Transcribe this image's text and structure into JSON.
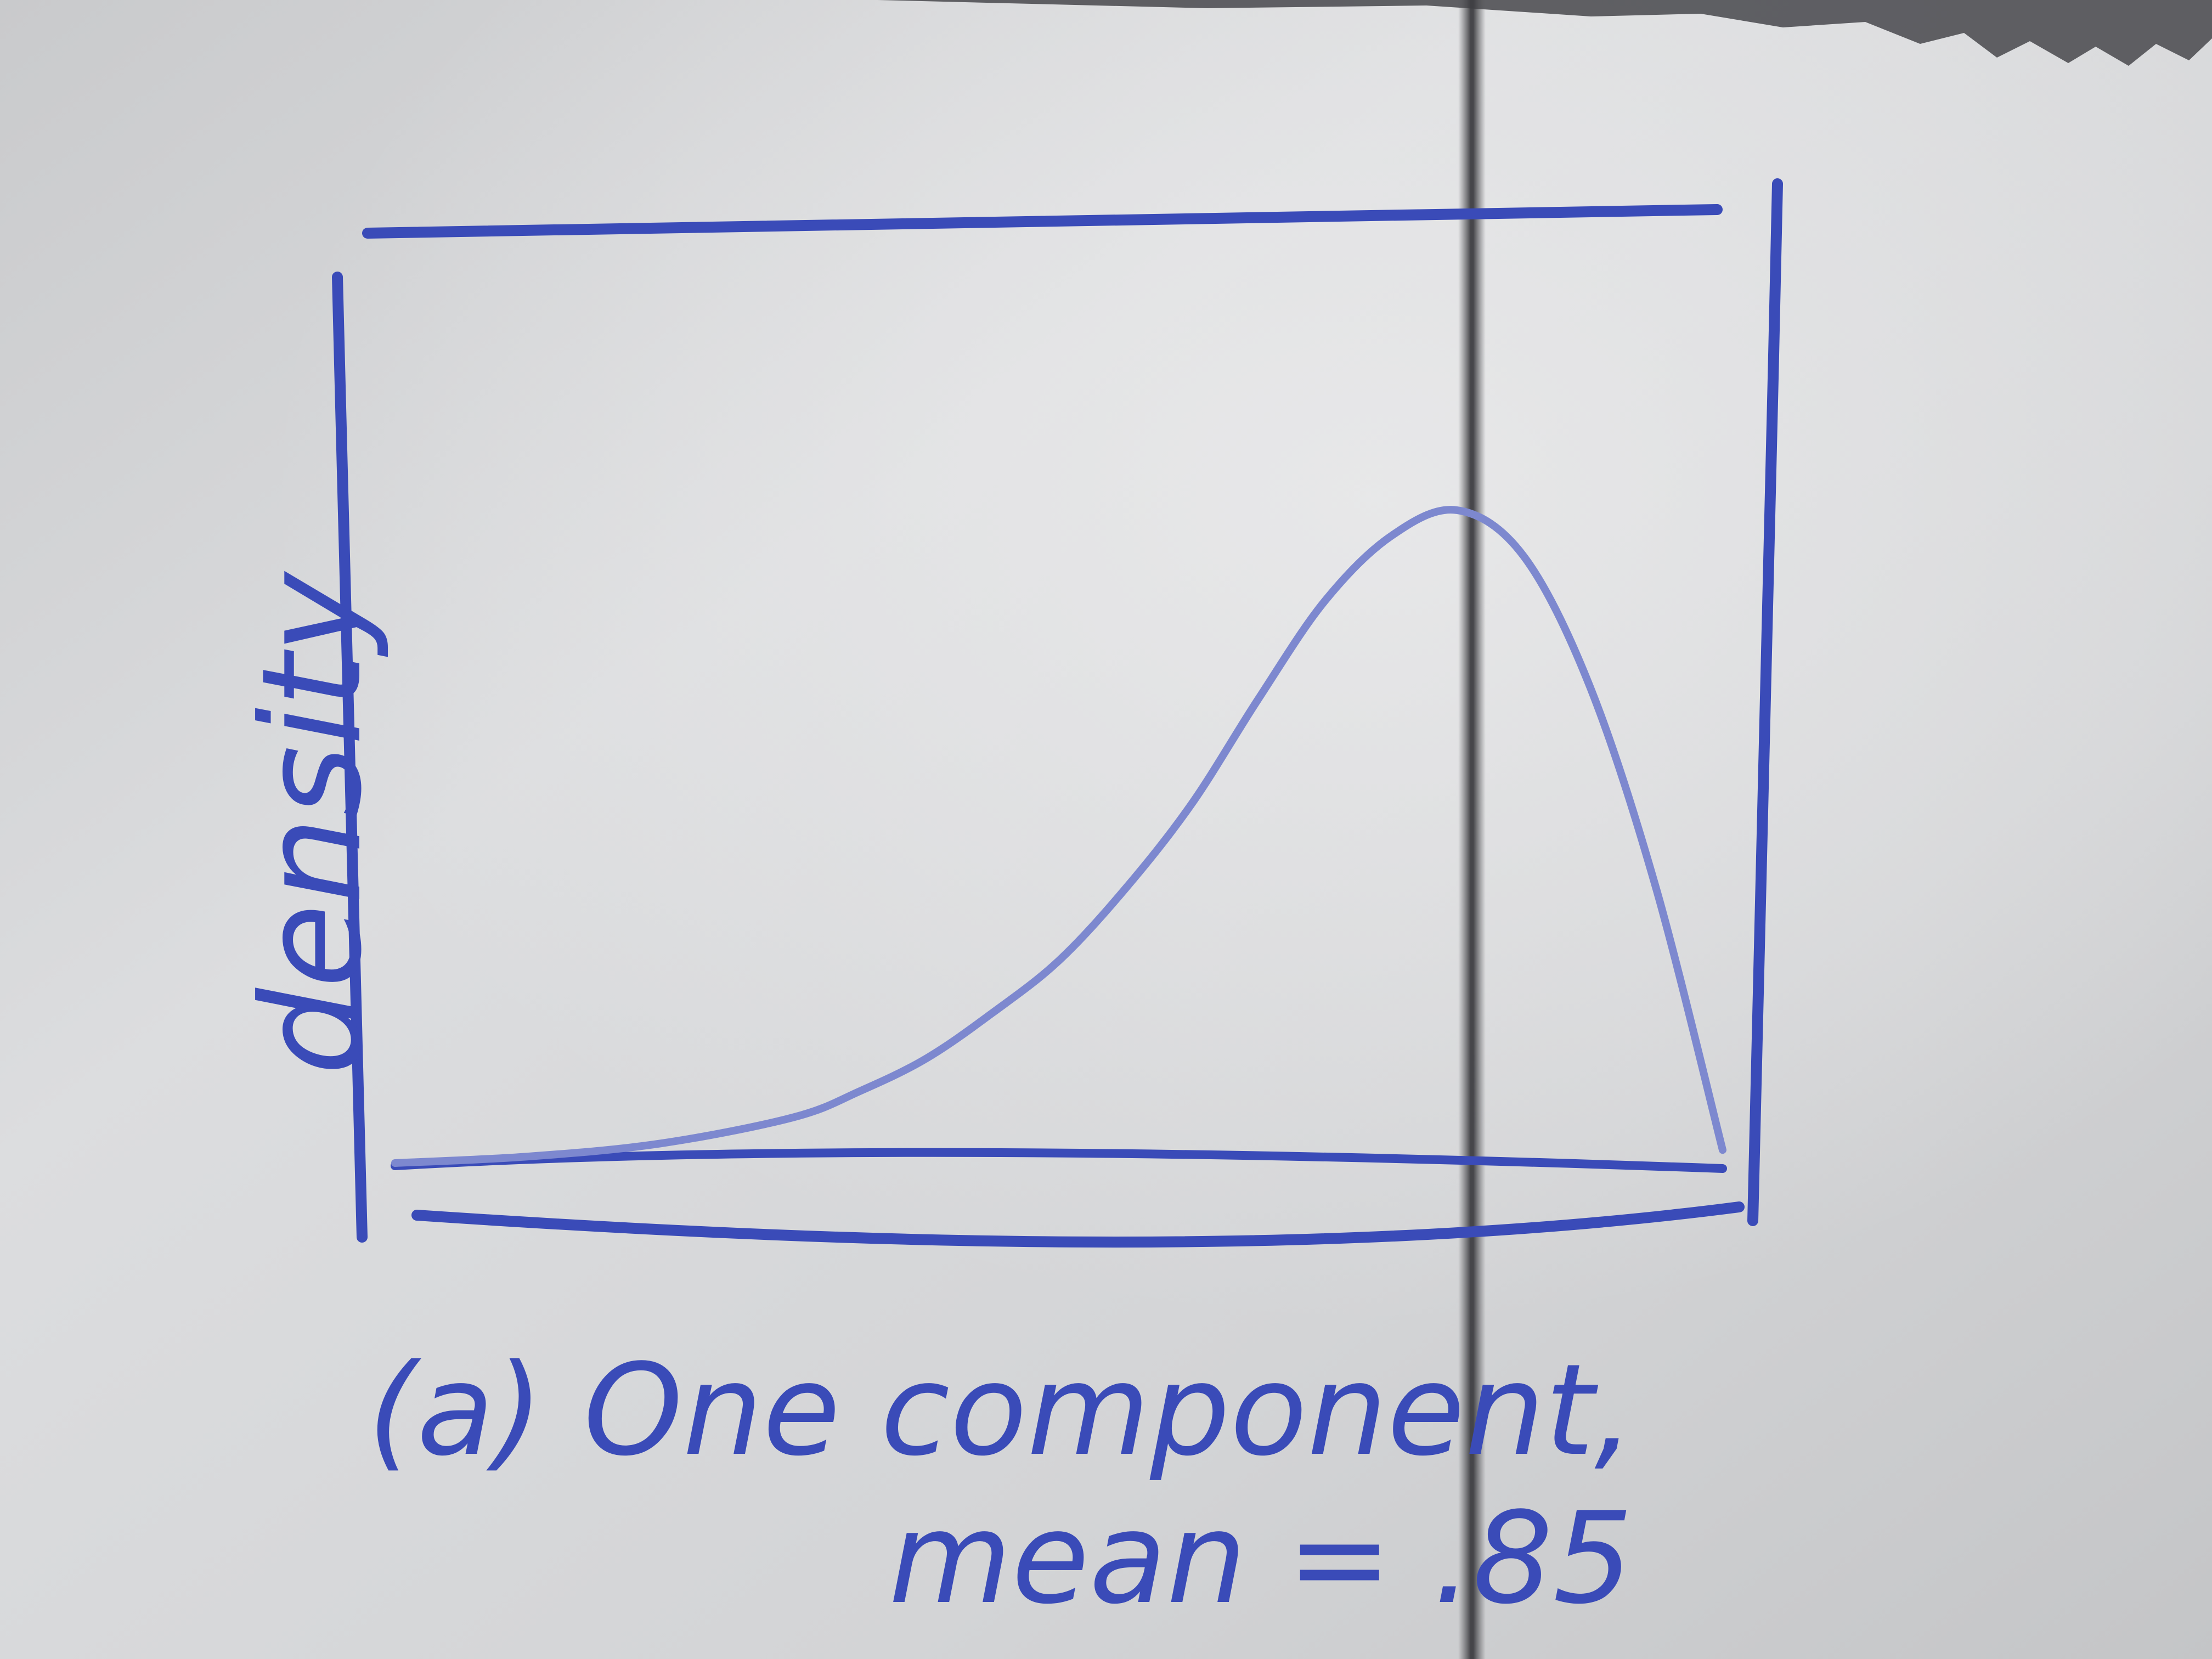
{
  "colors": {
    "ink": "#3a4bb8",
    "curve_ink": "#7d88cf",
    "paper": "#d8d9db",
    "fold": "#4a4a4e"
  },
  "chart_data": {
    "type": "line",
    "ylabel": "density",
    "xlabel": "",
    "caption_line1": "(a) One component,",
    "caption_line2": "mean = .85",
    "x_range": [
      0,
      1
    ],
    "y_range": [
      0,
      1
    ],
    "grid": false,
    "legend": "none",
    "series": [
      {
        "x": [
          0.0,
          0.1,
          0.2,
          0.3,
          0.35,
          0.4,
          0.45,
          0.5,
          0.55,
          0.6,
          0.65,
          0.7,
          0.75,
          0.8,
          0.85,
          0.9,
          0.95,
          1.0
        ],
        "values": [
          0.0,
          0.01,
          0.03,
          0.07,
          0.11,
          0.16,
          0.23,
          0.31,
          0.42,
          0.55,
          0.71,
          0.86,
          0.96,
          1.0,
          0.93,
          0.73,
          0.42,
          0.02
        ]
      }
    ]
  }
}
